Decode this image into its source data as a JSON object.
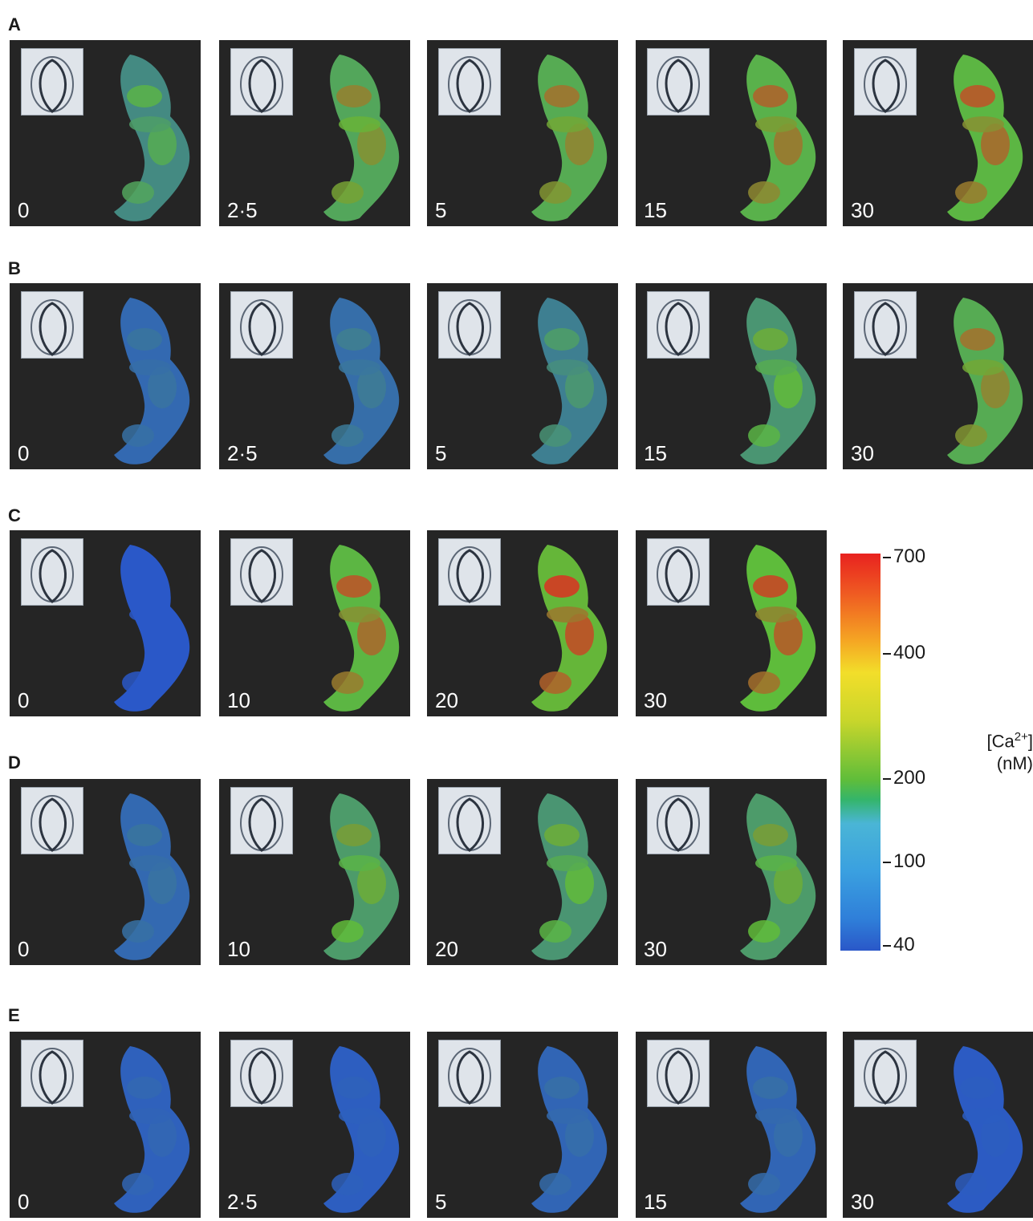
{
  "rows": [
    {
      "label": "A",
      "times": [
        "0",
        "2·5",
        "5",
        "15",
        "30"
      ],
      "intensity": [
        0.45,
        0.7,
        0.75,
        0.8,
        0.85
      ]
    },
    {
      "label": "B",
      "times": [
        "0",
        "2·5",
        "5",
        "15",
        "30"
      ],
      "intensity": [
        0.15,
        0.2,
        0.35,
        0.55,
        0.75
      ]
    },
    {
      "label": "C",
      "times": [
        "0",
        "10",
        "20",
        "30"
      ],
      "intensity": [
        0.0,
        0.85,
        0.95,
        0.9
      ]
    },
    {
      "label": "D",
      "times": [
        "0",
        "10",
        "20",
        "30"
      ],
      "intensity": [
        0.15,
        0.6,
        0.55,
        0.6
      ]
    },
    {
      "label": "E",
      "times": [
        "0",
        "2·5",
        "5",
        "15",
        "30"
      ],
      "intensity": [
        0.08,
        0.05,
        0.12,
        0.12,
        0.03
      ]
    }
  ],
  "colorbar": {
    "ticks": [
      "700",
      "400",
      "200",
      "100",
      "40"
    ],
    "label_main": "[Ca",
    "label_sup": "2+",
    "label_close": "]",
    "label_unit": "(nM)"
  },
  "colors": {
    "panel_background": "#252525",
    "low": "#2a58c8",
    "mid": "#5fbd3a",
    "high": "#e8221f"
  }
}
